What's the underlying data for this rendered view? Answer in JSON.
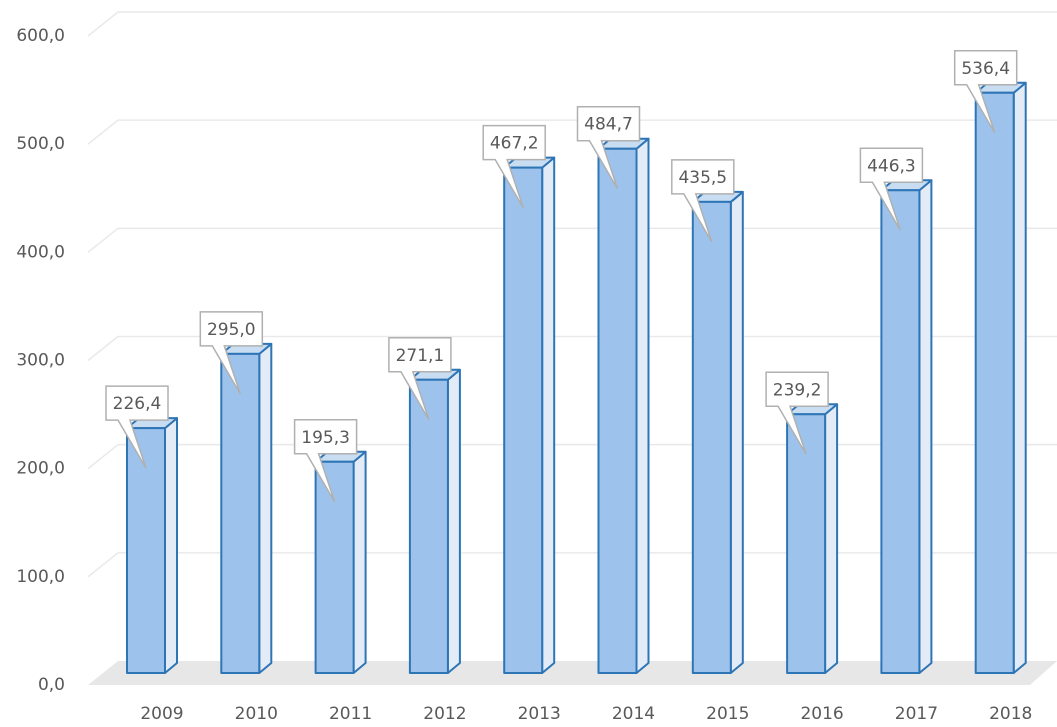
{
  "chart_data": {
    "type": "bar",
    "categories": [
      "2009",
      "2010",
      "2011",
      "2012",
      "2013",
      "2014",
      "2015",
      "2016",
      "2017",
      "2018"
    ],
    "values": [
      226.4,
      295.0,
      195.3,
      271.1,
      467.2,
      484.7,
      435.5,
      239.2,
      446.3,
      536.4
    ],
    "value_labels": [
      "226,4",
      "295,0",
      "195,3",
      "271,1",
      "467,2",
      "484,7",
      "435,5",
      "239,2",
      "446,3",
      "536,4"
    ],
    "color": "#9dc3ec",
    "ylim": [
      0,
      600
    ],
    "yticks": [
      {
        "value": 0,
        "label": "0,0"
      },
      {
        "value": 100,
        "label": "100,0"
      },
      {
        "value": 200,
        "label": "200,0"
      },
      {
        "value": 300,
        "label": "300,0"
      },
      {
        "value": 400,
        "label": "400,0"
      },
      {
        "value": 500,
        "label": "500,0"
      },
      {
        "value": 600,
        "label": "600,0"
      }
    ],
    "grid": true
  }
}
